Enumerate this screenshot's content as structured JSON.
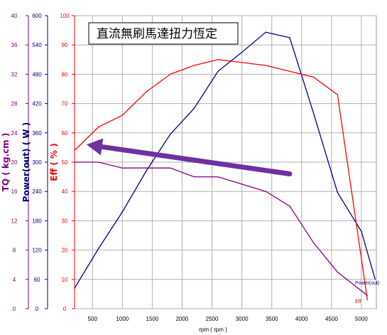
{
  "chart_data": {
    "type": "line",
    "title": "直流無刷馬達扭力恆定",
    "xlabel": "rpm ( rpm )",
    "xlim": [
      200,
      5250
    ],
    "x_ticks": [
      500,
      1000,
      1500,
      2000,
      2500,
      3000,
      3500,
      4000,
      4500,
      5000
    ],
    "axes": {
      "tq": {
        "label": "TQ ( kg.cm )",
        "ylim": [
          0,
          40
        ],
        "ticks": [
          0,
          4,
          8,
          12,
          16,
          20,
          24,
          28,
          32,
          36,
          40
        ],
        "color": "#800080"
      },
      "power": {
        "label": "Power(out) ( W )",
        "ylim": [
          0,
          600
        ],
        "ticks": [
          0,
          60,
          120,
          180,
          240,
          300,
          360,
          420,
          480,
          540,
          600
        ],
        "color": "#000080"
      },
      "eff": {
        "label": "Eff ( % )",
        "ylim": [
          0,
          100
        ],
        "ticks": [
          0,
          10,
          20,
          30,
          40,
          50,
          60,
          70,
          80,
          90,
          100
        ],
        "color": "#ff0000"
      }
    },
    "series": [
      {
        "name": "Power(out)",
        "axis": "power",
        "color": "#000080",
        "x": [
          200,
          600,
          1000,
          1400,
          1800,
          2200,
          2600,
          3000,
          3400,
          3800,
          4200,
          4600,
          5000,
          5230
        ],
        "y": [
          42,
          123,
          198,
          282,
          357,
          410,
          486,
          525,
          566,
          555,
          400,
          238,
          158,
          60
        ]
      },
      {
        "name": "Eff",
        "axis": "eff",
        "color": "#ff0000",
        "x": [
          200,
          600,
          1000,
          1400,
          1800,
          2200,
          2600,
          3000,
          3400,
          3800,
          4200,
          4600,
          5100
        ],
        "y": [
          54,
          62,
          66,
          74,
          80,
          83,
          85,
          84,
          83,
          81,
          79,
          73,
          3
        ]
      },
      {
        "name": "TQ",
        "axis": "tq",
        "color": "#800080",
        "x": [
          200,
          600,
          1000,
          1400,
          1800,
          2200,
          2600,
          3000,
          3400,
          3800,
          4200,
          4600,
          5100
        ],
        "y": [
          20,
          20,
          19.2,
          19.2,
          19.2,
          18,
          18,
          17,
          16,
          14,
          9,
          5,
          1.8
        ]
      }
    ],
    "annotation": {
      "type": "arrow",
      "color": "#7030a0",
      "from": {
        "x": 3800,
        "axis": "eff",
        "y": 46
      },
      "to": {
        "x": 400,
        "axis": "eff",
        "y": 56
      }
    }
  }
}
